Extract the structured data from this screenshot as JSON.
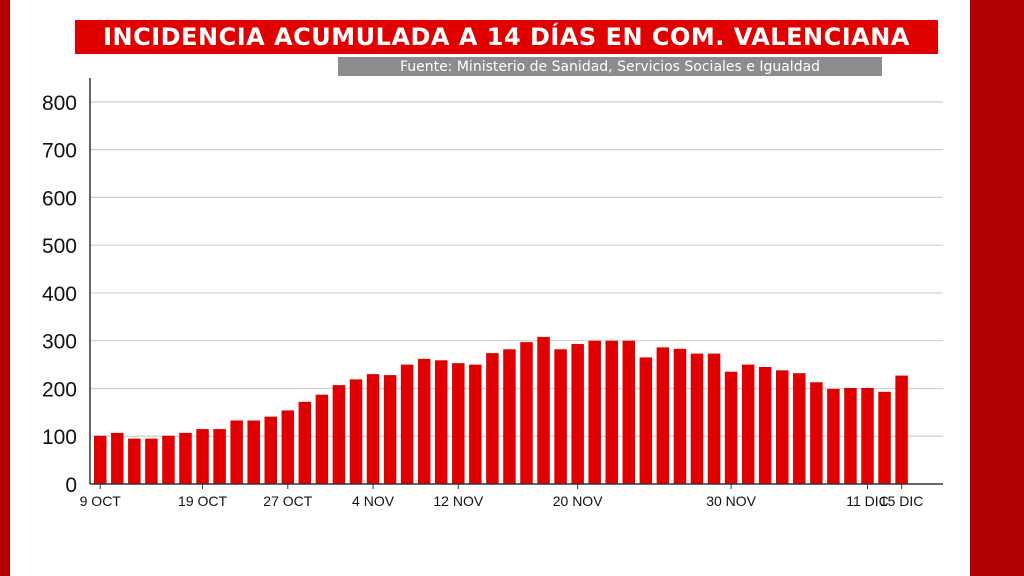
{
  "title": "INCIDENCIA ACUMULADA A 14 DÍAS EN COM. VALENCIANA",
  "source": "Fuente: Ministerio de Sanidad, Servicios Sociales e Igualdad",
  "colors": {
    "bar": "#e00000",
    "frame": "#b00000",
    "source_bar": "#8c8c8c",
    "grid": "#cfcfcf"
  },
  "chart_data": {
    "type": "bar",
    "title": "INCIDENCIA ACUMULADA A 14 DÍAS EN COM. VALENCIANA",
    "xlabel": "",
    "ylabel": "",
    "ylim": [
      0,
      850
    ],
    "yticks": [
      0,
      100,
      200,
      300,
      400,
      500,
      600,
      700,
      800
    ],
    "grid": true,
    "legend": "none",
    "xtick_labels": [
      {
        "index": 0,
        "label": "9 OCT"
      },
      {
        "index": 6,
        "label": "19 OCT"
      },
      {
        "index": 11,
        "label": "27 OCT"
      },
      {
        "index": 16,
        "label": "4 NOV"
      },
      {
        "index": 21,
        "label": "12 NOV"
      },
      {
        "index": 28,
        "label": "20 NOV"
      },
      {
        "index": 37,
        "label": "30 NOV"
      },
      {
        "index": 45,
        "label": "11 DIC"
      },
      {
        "index": 47,
        "label": "15 DIC"
      }
    ],
    "values": [
      101,
      107,
      95,
      95,
      101,
      107,
      115,
      115,
      133,
      133,
      141,
      154,
      172,
      187,
      207,
      219,
      230,
      228,
      250,
      262,
      259,
      253,
      250,
      274,
      282,
      297,
      308,
      282,
      293,
      300,
      300,
      300,
      265,
      286,
      283,
      273,
      273,
      235,
      250,
      245,
      238,
      232,
      213,
      199,
      201,
      201,
      193,
      227
    ]
  }
}
